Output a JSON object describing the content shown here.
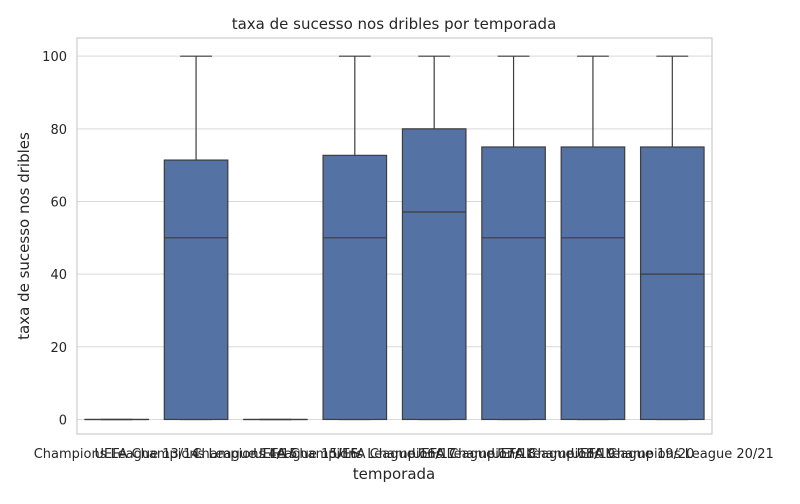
{
  "chart_data": {
    "type": "box",
    "title": "taxa de sucesso nos dribles por temporada",
    "xlabel": "temporada",
    "ylabel": "taxa de sucesso nos dribles",
    "ylim": [
      -4,
      105
    ],
    "yticks": [
      0,
      20,
      40,
      60,
      80,
      100
    ],
    "grid": true,
    "colors": {
      "box": "#5572a4",
      "line": "#3d3d3d",
      "grid": "#d9d9d9",
      "frame": "#cccccc"
    },
    "categories": [
      "Champions League 13/14",
      "UEFA Champions League 14/15",
      "Champions League 15/16",
      "UEFA Champions League 16/17",
      "UEFA Champions League 17/18",
      "UEFA Champions League 18/19",
      "UEFA Champions League 19/20",
      "UEFA Champions League 20/21"
    ],
    "boxes": [
      {
        "min": 0,
        "q1": 0,
        "median": 0,
        "q3": 0,
        "max": 0
      },
      {
        "min": 0,
        "q1": 0,
        "median": 50,
        "q3": 71.4,
        "max": 100
      },
      {
        "min": 0,
        "q1": 0,
        "median": 0,
        "q3": 0,
        "max": 0
      },
      {
        "min": 0,
        "q1": 0,
        "median": 50,
        "q3": 72.7,
        "max": 100
      },
      {
        "min": 0,
        "q1": 0,
        "median": 57.1,
        "q3": 80,
        "max": 100
      },
      {
        "min": 0,
        "q1": 0,
        "median": 50,
        "q3": 75,
        "max": 100
      },
      {
        "min": 0,
        "q1": 0,
        "median": 50,
        "q3": 75,
        "max": 100
      },
      {
        "min": 0,
        "q1": 0,
        "median": 40,
        "q3": 75,
        "max": 100
      }
    ]
  }
}
